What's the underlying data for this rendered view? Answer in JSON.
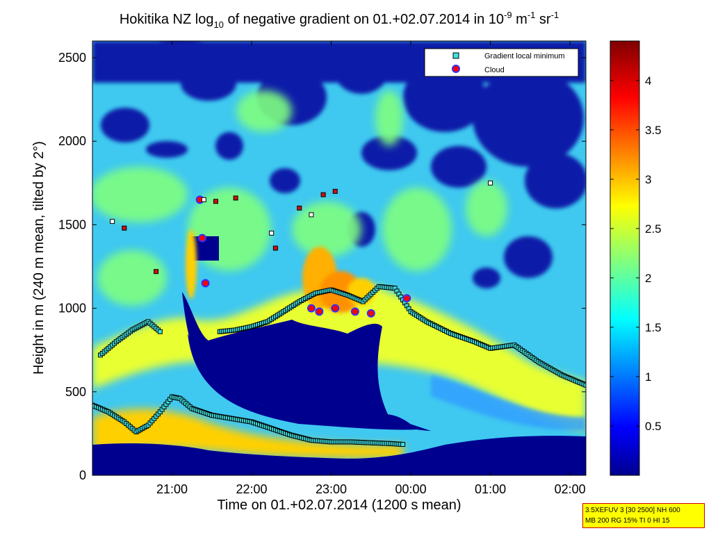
{
  "chart_data": {
    "type": "heatmap",
    "title": {
      "prefix": "Hokitika NZ log",
      "sub": "10",
      "middle": " of negative gradient on 01.+02.07.2014 in 10",
      "sup1": "-9",
      "unit1": " m",
      "sup2": "-1",
      "unit2": " sr",
      "sup3": "-1"
    },
    "xlabel": "Time on 01.+02.07.2014 (1200 s mean)",
    "ylabel": "Height in m (240 m mean, tilted by 2°)",
    "xlim_hours": [
      20.0,
      26.2
    ],
    "ylim": [
      0,
      2600
    ],
    "x_ticks": [
      {
        "hour": 21,
        "label": "21:00"
      },
      {
        "hour": 22,
        "label": "22:00"
      },
      {
        "hour": 23,
        "label": "23:00"
      },
      {
        "hour": 24,
        "label": "00:00"
      },
      {
        "hour": 25,
        "label": "01:00"
      },
      {
        "hour": 26,
        "label": "02:00"
      }
    ],
    "y_ticks": [
      0,
      500,
      1000,
      1500,
      2000,
      2500
    ],
    "colorbar": {
      "range": [
        0,
        4.4
      ],
      "ticks": [
        0.5,
        1,
        1.5,
        2,
        2.5,
        3,
        3.5,
        4
      ],
      "colormap": "jet"
    },
    "legend": {
      "position": "top-right",
      "entries": [
        {
          "label": "Gradient local minimum",
          "marker": "square",
          "color": "#40e0e0"
        },
        {
          "label": "Cloud",
          "marker": "circle",
          "color": "#ff0000",
          "edge": "#3030ff"
        }
      ]
    },
    "series": [
      {
        "name": "Gradient local minimum",
        "layer": "lower",
        "x": [
          20.0,
          20.2,
          20.4,
          20.55,
          20.7,
          20.85,
          21.0,
          21.1,
          21.25,
          21.5,
          21.75,
          22.0,
          22.25,
          22.5,
          22.75,
          23.0,
          23.25,
          23.5,
          23.75,
          23.9
        ],
        "y": [
          420,
          380,
          320,
          260,
          300,
          380,
          470,
          460,
          400,
          360,
          340,
          320,
          280,
          240,
          210,
          200,
          200,
          195,
          190,
          185
        ]
      },
      {
        "name": "Gradient local minimum",
        "layer": "middle",
        "x": [
          21.6,
          21.8,
          22.0,
          22.2,
          22.4,
          22.6,
          22.8,
          23.0,
          23.2,
          23.4,
          23.6,
          23.8,
          24.0,
          24.2,
          24.5,
          24.8,
          25.0,
          25.3,
          25.6,
          25.9,
          26.2
        ],
        "y": [
          860,
          870,
          890,
          920,
          980,
          1040,
          1090,
          1110,
          1080,
          1040,
          1130,
          1120,
          980,
          920,
          850,
          800,
          760,
          780,
          680,
          600,
          540
        ]
      },
      {
        "name": "Gradient local minimum",
        "layer": "morning-upper",
        "x": [
          20.1,
          20.3,
          20.5,
          20.7,
          20.85
        ],
        "y": [
          720,
          800,
          870,
          920,
          860
        ]
      },
      {
        "name": "Cloud",
        "x": [
          21.35,
          21.38,
          21.42,
          22.75,
          22.85,
          23.05,
          23.3,
          23.5,
          23.95
        ],
        "y": [
          1650,
          1420,
          1150,
          1000,
          980,
          1000,
          980,
          970,
          1060
        ]
      }
    ],
    "scattered_markers": {
      "name": "Upper local minima",
      "x": [
        20.25,
        20.4,
        20.8,
        21.4,
        21.55,
        21.8,
        22.25,
        22.3,
        22.6,
        22.75,
        22.9,
        23.05,
        25.0
      ],
      "y": [
        1520,
        1480,
        1220,
        1650,
        1640,
        1660,
        1450,
        1360,
        1600,
        1560,
        1680,
        1700,
        1750
      ]
    }
  },
  "info_box": {
    "line1": "3.5XEFUV 3 [30 2500] NH 600",
    "line2": "MB 200 RG 15% TI 0 HI 15"
  }
}
